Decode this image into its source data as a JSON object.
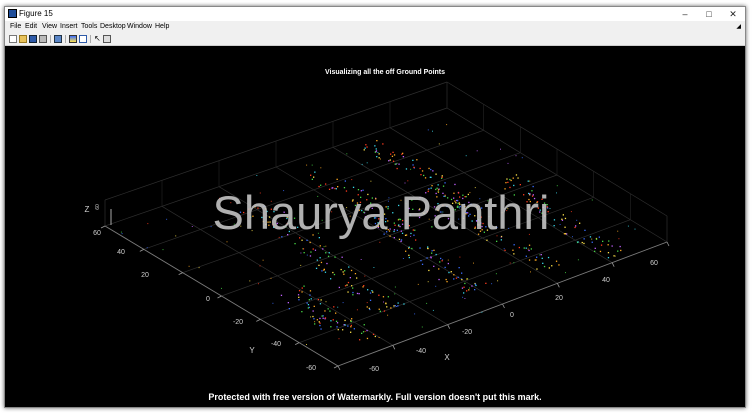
{
  "window": {
    "title": "Figure 15",
    "controls": {
      "minimize": "–",
      "maximize": "□",
      "close": "✕"
    }
  },
  "menu": {
    "items": [
      "File",
      "Edit",
      "View",
      "Insert",
      "Tools",
      "Desktop",
      "Window",
      "Help"
    ],
    "overflow_icon": "arrow-icon"
  },
  "toolbar": {
    "tools": [
      "new-figure-icon",
      "open-file-icon",
      "save-icon",
      "print-icon",
      "link-plot-icon",
      "insert-colorbar-icon",
      "insert-legend-icon",
      "pointer-icon",
      "plot-tools-icon"
    ]
  },
  "plot": {
    "title": "Visualizing all the off Ground Points",
    "axes": {
      "x": {
        "label": "X",
        "ticks": [
          "-60",
          "-40",
          "-20",
          "0",
          "20",
          "40",
          "60"
        ]
      },
      "y": {
        "label": "Y",
        "ticks": [
          "-60",
          "-40",
          "-20",
          "0",
          "20",
          "40",
          "60"
        ]
      },
      "z": {
        "label": "Z",
        "ticks": [
          "60"
        ]
      }
    },
    "background": "#000000",
    "grid": true
  },
  "watermarks": {
    "center": "Shaurya Panthri",
    "bottom": "Protected with free version of Watermarkly. Full version doesn't put this mark."
  },
  "colors": {
    "point_palette": [
      "#ff3b1e",
      "#ffaa22",
      "#ffe34a",
      "#46d846",
      "#38d6e8",
      "#3a6dff",
      "#c060ff"
    ]
  }
}
